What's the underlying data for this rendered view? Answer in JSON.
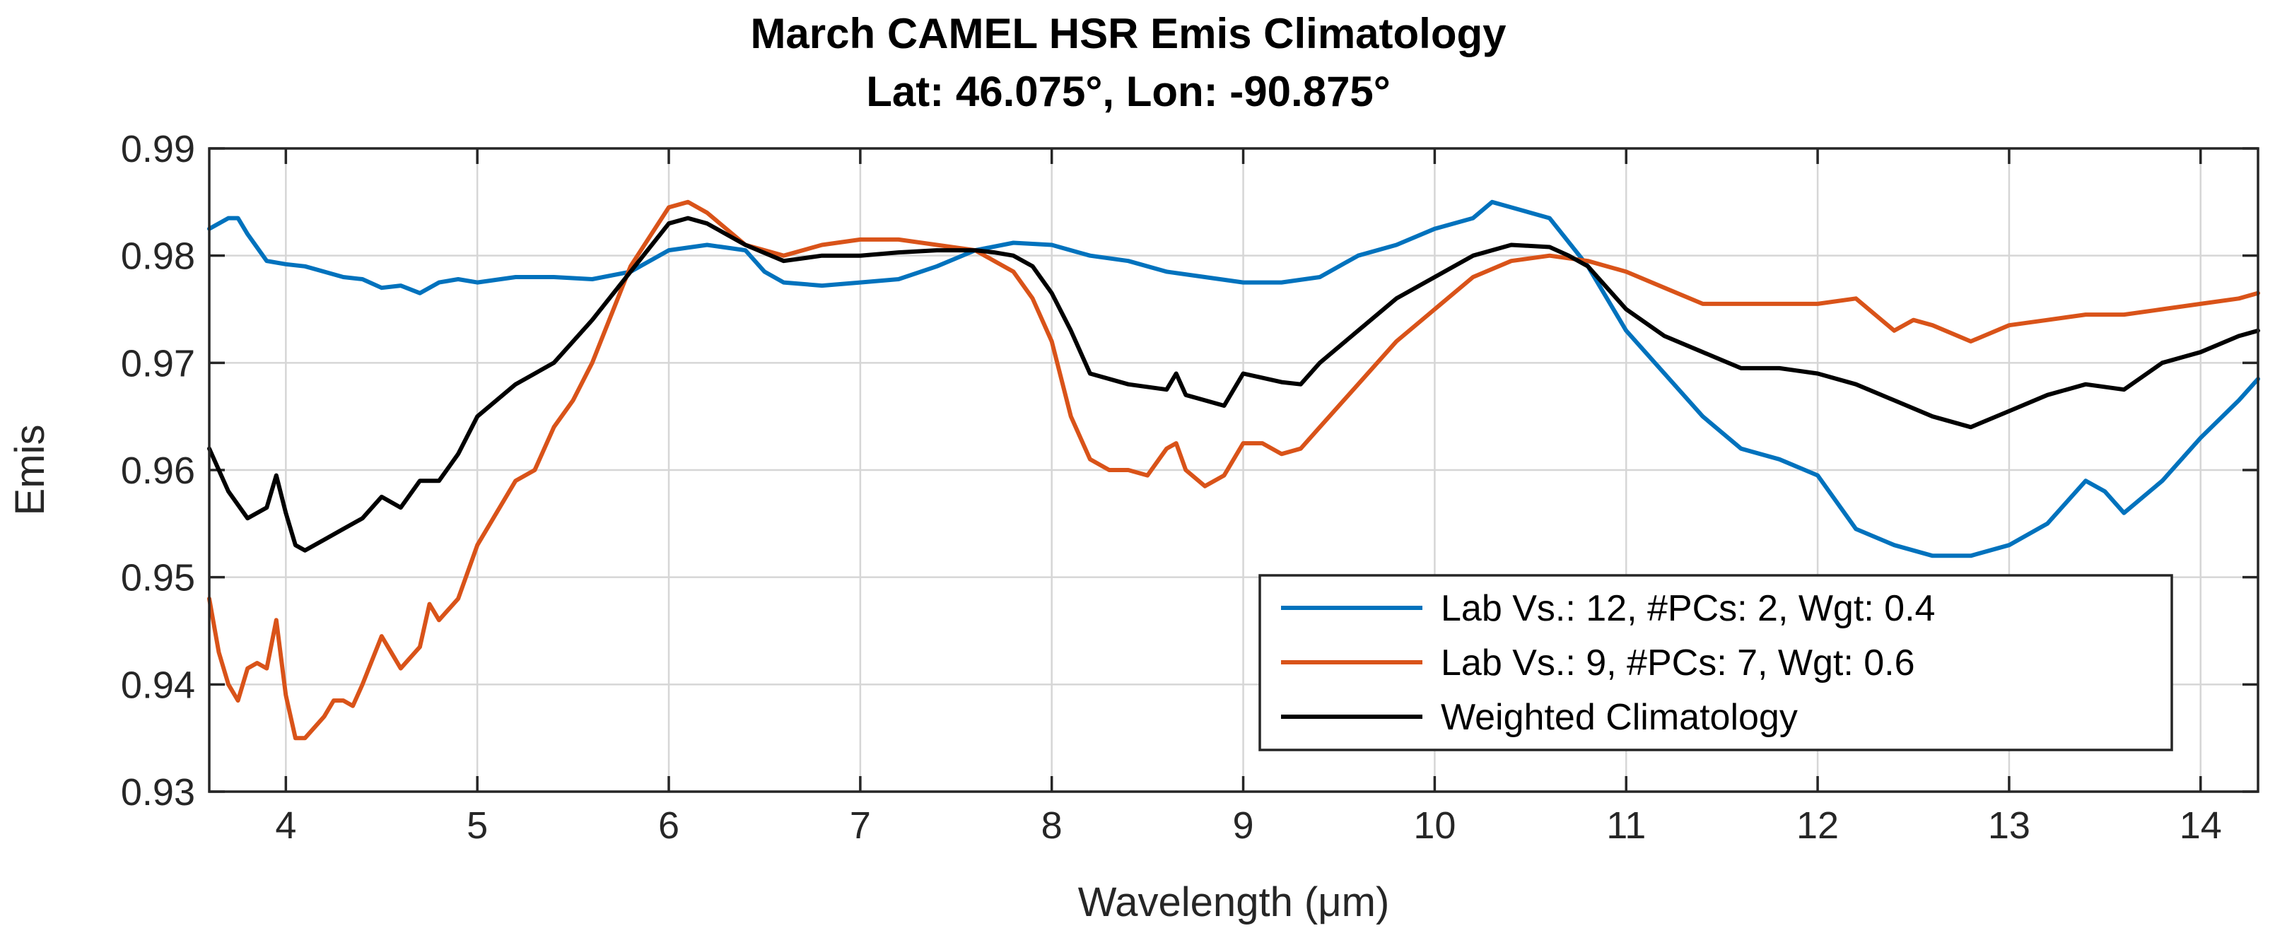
{
  "chart_data": {
    "type": "line",
    "title": "March CAMEL HSR Emis Climatology",
    "subtitle": "Lat: 46.075°, Lon: -90.875°",
    "xlabel": "Wavelength (μm)",
    "ylabel": "Emis",
    "xlim": [
      3.6,
      14.3
    ],
    "ylim": [
      0.93,
      0.99
    ],
    "xticks": [
      4,
      5,
      6,
      7,
      8,
      9,
      10,
      11,
      12,
      13,
      14
    ],
    "xtick_labels": [
      "4",
      "5",
      "6",
      "7",
      "8",
      "9",
      "10",
      "11",
      "12",
      "13",
      "14"
    ],
    "yticks": [
      0.93,
      0.94,
      0.95,
      0.96,
      0.97,
      0.98,
      0.99
    ],
    "ytick_labels": [
      "0.93",
      "0.94",
      "0.95",
      "0.96",
      "0.97",
      "0.98",
      "0.99"
    ],
    "grid": true,
    "legend_position": "lower-right",
    "series": [
      {
        "name": "Lab Vs.: 12, #PCs: 2, Wgt: 0.4",
        "color": "#0072BD",
        "x": [
          3.6,
          3.7,
          3.75,
          3.8,
          3.9,
          4.0,
          4.1,
          4.2,
          4.3,
          4.4,
          4.5,
          4.6,
          4.7,
          4.8,
          4.9,
          5.0,
          5.2,
          5.4,
          5.6,
          5.8,
          6.0,
          6.2,
          6.4,
          6.5,
          6.6,
          6.8,
          7.0,
          7.2,
          7.4,
          7.6,
          7.8,
          8.0,
          8.2,
          8.4,
          8.6,
          8.8,
          9.0,
          9.2,
          9.4,
          9.6,
          9.8,
          10.0,
          10.2,
          10.3,
          10.4,
          10.6,
          10.8,
          11.0,
          11.2,
          11.4,
          11.6,
          11.8,
          12.0,
          12.2,
          12.4,
          12.6,
          12.8,
          13.0,
          13.2,
          13.4,
          13.5,
          13.6,
          13.8,
          14.0,
          14.2,
          14.3
        ],
        "values": [
          0.9825,
          0.9835,
          0.9835,
          0.982,
          0.9795,
          0.9792,
          0.979,
          0.9785,
          0.978,
          0.9778,
          0.977,
          0.9772,
          0.9765,
          0.9775,
          0.9778,
          0.9775,
          0.978,
          0.978,
          0.9778,
          0.9785,
          0.9805,
          0.981,
          0.9805,
          0.9785,
          0.9775,
          0.9772,
          0.9775,
          0.9778,
          0.979,
          0.9805,
          0.9812,
          0.981,
          0.98,
          0.9795,
          0.9785,
          0.978,
          0.9775,
          0.9775,
          0.978,
          0.98,
          0.981,
          0.9825,
          0.9835,
          0.985,
          0.9845,
          0.9835,
          0.979,
          0.973,
          0.969,
          0.965,
          0.962,
          0.961,
          0.9595,
          0.9545,
          0.953,
          0.952,
          0.952,
          0.953,
          0.955,
          0.959,
          0.958,
          0.956,
          0.959,
          0.963,
          0.9665,
          0.9685
        ]
      },
      {
        "name": "Lab Vs.: 9, #PCs: 7, Wgt: 0.6",
        "color": "#D95319",
        "x": [
          3.6,
          3.65,
          3.7,
          3.75,
          3.8,
          3.85,
          3.9,
          3.95,
          4.0,
          4.05,
          4.1,
          4.2,
          4.25,
          4.3,
          4.35,
          4.4,
          4.5,
          4.55,
          4.6,
          4.7,
          4.75,
          4.8,
          4.9,
          5.0,
          5.2,
          5.3,
          5.4,
          5.5,
          5.6,
          5.8,
          6.0,
          6.1,
          6.2,
          6.4,
          6.6,
          6.8,
          7.0,
          7.2,
          7.4,
          7.6,
          7.7,
          7.8,
          7.9,
          8.0,
          8.1,
          8.2,
          8.3,
          8.4,
          8.5,
          8.6,
          8.65,
          8.7,
          8.8,
          8.9,
          9.0,
          9.1,
          9.2,
          9.3,
          9.4,
          9.6,
          9.8,
          10.0,
          10.2,
          10.4,
          10.6,
          10.8,
          11.0,
          11.2,
          11.4,
          11.6,
          11.8,
          12.0,
          12.2,
          12.4,
          12.5,
          12.6,
          12.8,
          13.0,
          13.2,
          13.4,
          13.6,
          13.8,
          14.0,
          14.2,
          14.3
        ],
        "values": [
          0.948,
          0.943,
          0.94,
          0.9385,
          0.9415,
          0.942,
          0.9415,
          0.946,
          0.939,
          0.935,
          0.935,
          0.937,
          0.9385,
          0.9385,
          0.938,
          0.94,
          0.9445,
          0.943,
          0.9415,
          0.9435,
          0.9475,
          0.946,
          0.948,
          0.953,
          0.959,
          0.96,
          0.964,
          0.9665,
          0.97,
          0.979,
          0.9845,
          0.985,
          0.984,
          0.981,
          0.98,
          0.981,
          0.9815,
          0.9815,
          0.981,
          0.9805,
          0.9795,
          0.9785,
          0.976,
          0.972,
          0.965,
          0.961,
          0.96,
          0.96,
          0.9595,
          0.962,
          0.9625,
          0.96,
          0.9585,
          0.9595,
          0.9625,
          0.9625,
          0.9615,
          0.962,
          0.964,
          0.968,
          0.972,
          0.975,
          0.978,
          0.9795,
          0.98,
          0.9795,
          0.9785,
          0.977,
          0.9755,
          0.9755,
          0.9755,
          0.9755,
          0.976,
          0.973,
          0.974,
          0.9735,
          0.972,
          0.9735,
          0.974,
          0.9745,
          0.9745,
          0.975,
          0.9755,
          0.976,
          0.9765
        ]
      },
      {
        "name": "Weighted Climatology",
        "color": "#000000",
        "x": [
          3.6,
          3.7,
          3.8,
          3.9,
          3.95,
          4.0,
          4.05,
          4.1,
          4.2,
          4.3,
          4.4,
          4.5,
          4.6,
          4.7,
          4.8,
          4.9,
          5.0,
          5.2,
          5.4,
          5.6,
          5.8,
          6.0,
          6.1,
          6.2,
          6.4,
          6.6,
          6.8,
          7.0,
          7.2,
          7.4,
          7.6,
          7.7,
          7.8,
          7.9,
          8.0,
          8.1,
          8.2,
          8.4,
          8.6,
          8.65,
          8.7,
          8.8,
          8.9,
          9.0,
          9.2,
          9.3,
          9.4,
          9.6,
          9.8,
          10.0,
          10.2,
          10.4,
          10.6,
          10.7,
          10.8,
          11.0,
          11.2,
          11.4,
          11.6,
          11.8,
          12.0,
          12.2,
          12.4,
          12.6,
          12.8,
          13.0,
          13.2,
          13.4,
          13.6,
          13.8,
          14.0,
          14.2,
          14.3
        ],
        "values": [
          0.962,
          0.958,
          0.9555,
          0.9565,
          0.9595,
          0.956,
          0.953,
          0.9525,
          0.9535,
          0.9545,
          0.9555,
          0.9575,
          0.9565,
          0.959,
          0.959,
          0.9615,
          0.965,
          0.968,
          0.97,
          0.974,
          0.9785,
          0.983,
          0.9835,
          0.983,
          0.981,
          0.9795,
          0.98,
          0.98,
          0.9803,
          0.9805,
          0.9805,
          0.9803,
          0.98,
          0.979,
          0.9765,
          0.973,
          0.969,
          0.968,
          0.9675,
          0.969,
          0.967,
          0.9665,
          0.966,
          0.969,
          0.9682,
          0.968,
          0.97,
          0.973,
          0.976,
          0.978,
          0.98,
          0.981,
          0.9808,
          0.98,
          0.979,
          0.975,
          0.9725,
          0.971,
          0.9695,
          0.9695,
          0.969,
          0.968,
          0.9665,
          0.965,
          0.964,
          0.9655,
          0.967,
          0.968,
          0.9675,
          0.97,
          0.971,
          0.9725,
          0.973
        ]
      }
    ]
  }
}
